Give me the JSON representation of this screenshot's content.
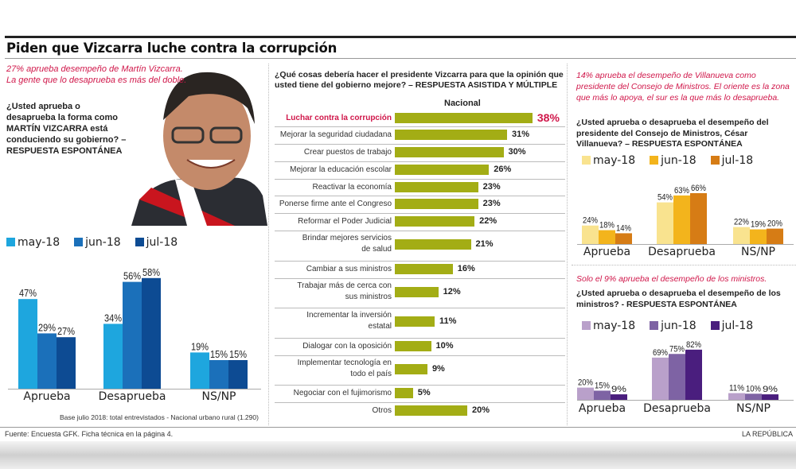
{
  "title": "Piden que Vizcarra luche contra la corrupción",
  "left": {
    "highlight": "27% aprueba desempeño de Martín Vizcarra. La gente que lo desaprueba es más del doble.",
    "question": "¿Usted aprueba o desaprueba la forma como MARTÍN VIZCARRA está conduciendo su gobierno? – RESPUESTA ESPONTÁNEA",
    "base_note": "Base julio 2018: total entrevistados - Nacional urbano rural (1.290)"
  },
  "middle": {
    "question": "¿Qué cosas debería hacer el presidente Vizcarra para que la opinión que usted tiene del gobierno mejore? – RESPUESTA ASISTIDA Y MÚLTIPLE",
    "column_header": "Nacional"
  },
  "right_top": {
    "highlight": "14% aprueba el desempeño de Villanueva como presidente del Consejo de Ministros. El oriente es la zona que más lo apoya, el sur es la que más lo desaprueba.",
    "question": "¿Usted aprueba o desaprueba el desempeño del presidente del Consejo de Ministros, César Villanueva? – RESPUESTA ESPONTÁNEA"
  },
  "right_bottom": {
    "highlight": "Solo el 9% aprueba el desempeño de los ministros.",
    "question": "¿Usted aprueba o desaprueba el desempeño de los ministros? - RESPUESTA ESPONTÁNEA"
  },
  "footer": {
    "source": "Fuente: Encuesta GFK. Ficha técnica en la página 4.",
    "brand": "LA REPÚBLICA"
  },
  "chart_data": [
    {
      "type": "bar",
      "categories": [
        "Aprueba",
        "Desaprueba",
        "NS/NP"
      ],
      "legend": "top-left",
      "series": [
        {
          "name": "may-18",
          "values": [
            47,
            34,
            19
          ],
          "color": "#1ea6de"
        },
        {
          "name": "jun-18",
          "values": [
            29,
            56,
            15
          ],
          "color": "#1b70ba"
        },
        {
          "name": "jul-18",
          "values": [
            27,
            58,
            15
          ],
          "color": "#0d4b93"
        }
      ]
    },
    {
      "type": "bar",
      "orientation": "horizontal",
      "categories": [
        "Luchar contra la corrupción",
        "Mejorar la seguridad ciudadana",
        "Crear puestos de trabajo",
        "Mejorar la educación escolar",
        "Reactivar la economía",
        "Ponerse firme ante el Congreso",
        "Reformar el Poder Judicial",
        "Brindar mejores servicios de salud",
        "Cambiar a sus ministros",
        "Trabajar más de cerca con sus ministros",
        "Incrementar la inversión estatal",
        "Dialogar con la oposición",
        "Implementar tecnología en todo el país",
        "Negociar con el fujimorismo",
        "Otros"
      ],
      "series": [
        {
          "name": "Nacional",
          "values": [
            38,
            31,
            30,
            26,
            23,
            23,
            22,
            21,
            16,
            12,
            11,
            10,
            9,
            5,
            20
          ],
          "color": "#a3ad15"
        }
      ],
      "highlight_color": "#d0174a"
    },
    {
      "type": "bar",
      "categories": [
        "Aprueba",
        "Desaprueba",
        "NS/NP"
      ],
      "legend": "top-left",
      "series": [
        {
          "name": "may-18",
          "values": [
            24,
            54,
            22
          ],
          "color": "#f9e38f"
        },
        {
          "name": "jun-18",
          "values": [
            18,
            63,
            19
          ],
          "color": "#f3b41c"
        },
        {
          "name": "jul-18",
          "values": [
            14,
            66,
            20
          ],
          "color": "#d67c15"
        }
      ]
    },
    {
      "type": "bar",
      "categories": [
        "Aprueba",
        "Desaprueba",
        "NS/NP"
      ],
      "legend": "top-left",
      "series": [
        {
          "name": "may-18",
          "values": [
            20,
            69,
            11
          ],
          "color": "#b9a0ca"
        },
        {
          "name": "jun-18",
          "values": [
            15,
            75,
            10
          ],
          "color": "#7e63a4"
        },
        {
          "name": "jul-18",
          "values": [
            9,
            82,
            9
          ],
          "color": "#4a1e7e"
        }
      ]
    }
  ]
}
